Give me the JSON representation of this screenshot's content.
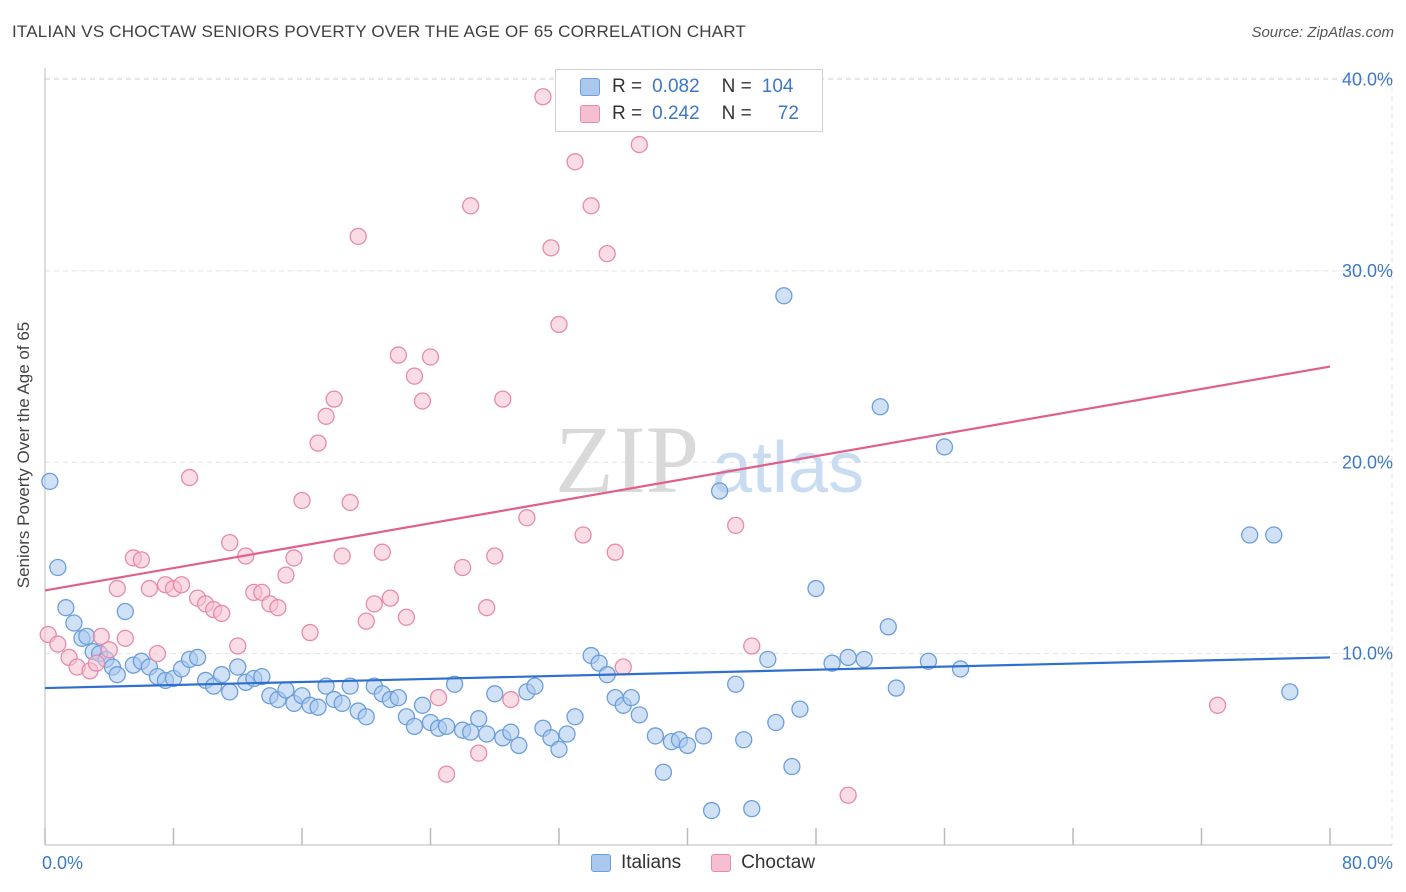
{
  "title": "ITALIAN VS CHOCTAW SENIORS POVERTY OVER THE AGE OF 65 CORRELATION CHART",
  "source": "Source: ZipAtlas.com",
  "watermark": {
    "zip": "ZIP",
    "atlas": "atlas"
  },
  "legend": {
    "italians": {
      "r_label": "R =",
      "r_value": "0.082",
      "n_label": "N =",
      "n_value": "104"
    },
    "choctaw": {
      "r_label": "R =",
      "r_value": "0.242",
      "n_label": "N =",
      "n_value": "72"
    }
  },
  "chart_data": {
    "type": "scatter",
    "title": "ITALIAN VS CHOCTAW SENIORS POVERTY OVER THE AGE OF 65 CORRELATION CHART",
    "xlabel": "",
    "ylabel": "Seniors Poverty Over the Age of 65",
    "xlim": [
      0,
      80
    ],
    "ylim": [
      0,
      41
    ],
    "x_tick_labels": [
      "0.0%",
      "80.0%"
    ],
    "y_ticks": [
      10,
      20,
      30,
      40
    ],
    "y_tick_labels": [
      "10.0%",
      "20.0%",
      "30.0%",
      "40.0%"
    ],
    "grid": true,
    "legend_position": "top-center",
    "colors": {
      "italians_fill": "#aac8ee",
      "italians_stroke": "#6b9fdc",
      "italians_line": "#2f6fcf",
      "choctaw_fill": "#f5bfd0",
      "choctaw_stroke": "#e88aab",
      "choctaw_line": "#e0608a",
      "tick_label": "#3d78c8"
    },
    "series": [
      {
        "name": "Italians",
        "trend": {
          "x": [
            0,
            80
          ],
          "y": [
            8.2,
            9.8
          ]
        },
        "points": [
          [
            0.3,
            19.0
          ],
          [
            0.8,
            14.5
          ],
          [
            1.3,
            12.4
          ],
          [
            1.8,
            11.6
          ],
          [
            2.3,
            10.8
          ],
          [
            2.6,
            10.9
          ],
          [
            3.0,
            10.1
          ],
          [
            3.4,
            10.0
          ],
          [
            3.8,
            9.7
          ],
          [
            4.2,
            9.3
          ],
          [
            4.5,
            8.9
          ],
          [
            5.0,
            12.2
          ],
          [
            5.5,
            9.4
          ],
          [
            6.0,
            9.6
          ],
          [
            6.5,
            9.3
          ],
          [
            7.0,
            8.8
          ],
          [
            7.5,
            8.6
          ],
          [
            8.0,
            8.7
          ],
          [
            8.5,
            9.2
          ],
          [
            9.0,
            9.7
          ],
          [
            9.5,
            9.8
          ],
          [
            10.0,
            8.6
          ],
          [
            10.5,
            8.3
          ],
          [
            11.0,
            8.9
          ],
          [
            11.5,
            8.0
          ],
          [
            12.0,
            9.3
          ],
          [
            12.5,
            8.5
          ],
          [
            13.0,
            8.7
          ],
          [
            13.5,
            8.8
          ],
          [
            14.0,
            7.8
          ],
          [
            14.5,
            7.6
          ],
          [
            15.0,
            8.1
          ],
          [
            15.5,
            7.4
          ],
          [
            16.0,
            7.8
          ],
          [
            16.5,
            7.3
          ],
          [
            17.0,
            7.2
          ],
          [
            17.5,
            8.3
          ],
          [
            18.0,
            7.6
          ],
          [
            18.5,
            7.4
          ],
          [
            19.0,
            8.3
          ],
          [
            19.5,
            7.0
          ],
          [
            20.0,
            6.7
          ],
          [
            20.5,
            8.3
          ],
          [
            21.0,
            7.9
          ],
          [
            21.5,
            7.6
          ],
          [
            22.0,
            7.7
          ],
          [
            22.5,
            6.7
          ],
          [
            23.0,
            6.2
          ],
          [
            23.5,
            7.3
          ],
          [
            24.0,
            6.4
          ],
          [
            24.5,
            6.1
          ],
          [
            25.0,
            6.2
          ],
          [
            25.5,
            8.4
          ],
          [
            26.0,
            6.0
          ],
          [
            26.5,
            5.9
          ],
          [
            27.0,
            6.6
          ],
          [
            27.5,
            5.8
          ],
          [
            28.0,
            7.9
          ],
          [
            28.5,
            5.6
          ],
          [
            29.0,
            5.9
          ],
          [
            29.5,
            5.2
          ],
          [
            30.0,
            8.0
          ],
          [
            30.5,
            8.3
          ],
          [
            31.0,
            6.1
          ],
          [
            31.5,
            5.6
          ],
          [
            32.0,
            5.0
          ],
          [
            32.5,
            5.8
          ],
          [
            33.0,
            6.7
          ],
          [
            34.0,
            9.9
          ],
          [
            34.5,
            9.5
          ],
          [
            35.0,
            8.9
          ],
          [
            35.5,
            7.7
          ],
          [
            36.0,
            7.3
          ],
          [
            36.5,
            7.7
          ],
          [
            37.0,
            6.8
          ],
          [
            38.0,
            5.7
          ],
          [
            38.5,
            3.8
          ],
          [
            39.0,
            5.4
          ],
          [
            39.5,
            5.5
          ],
          [
            40.0,
            5.2
          ],
          [
            41.0,
            5.7
          ],
          [
            41.5,
            1.8
          ],
          [
            42.0,
            18.5
          ],
          [
            43.0,
            8.4
          ],
          [
            43.5,
            5.5
          ],
          [
            44.0,
            1.9
          ],
          [
            45.0,
            9.7
          ],
          [
            45.5,
            6.4
          ],
          [
            46.0,
            28.7
          ],
          [
            46.5,
            4.1
          ],
          [
            47.0,
            7.1
          ],
          [
            48.0,
            13.4
          ],
          [
            49.0,
            9.5
          ],
          [
            50.0,
            9.8
          ],
          [
            51.0,
            9.7
          ],
          [
            52.0,
            22.9
          ],
          [
            52.5,
            11.4
          ],
          [
            53.0,
            8.2
          ],
          [
            55.0,
            9.6
          ],
          [
            56.0,
            20.8
          ],
          [
            57.0,
            9.2
          ],
          [
            75.0,
            16.2
          ],
          [
            76.5,
            16.2
          ],
          [
            77.5,
            8.0
          ]
        ]
      },
      {
        "name": "Choctaw",
        "trend": {
          "x": [
            0,
            80
          ],
          "y": [
            13.3,
            25.0
          ]
        },
        "points": [
          [
            0.2,
            11.0
          ],
          [
            0.8,
            10.5
          ],
          [
            1.5,
            9.8
          ],
          [
            2.0,
            9.3
          ],
          [
            2.8,
            9.1
          ],
          [
            3.2,
            9.5
          ],
          [
            3.5,
            10.9
          ],
          [
            4.0,
            10.2
          ],
          [
            4.5,
            13.4
          ],
          [
            5.0,
            10.8
          ],
          [
            5.5,
            15.0
          ],
          [
            6.0,
            14.9
          ],
          [
            6.5,
            13.4
          ],
          [
            7.0,
            10.0
          ],
          [
            7.5,
            13.6
          ],
          [
            8.0,
            13.4
          ],
          [
            8.5,
            13.6
          ],
          [
            9.0,
            19.2
          ],
          [
            9.5,
            12.9
          ],
          [
            10.0,
            12.6
          ],
          [
            10.5,
            12.3
          ],
          [
            11.0,
            12.1
          ],
          [
            11.5,
            15.8
          ],
          [
            12.0,
            10.4
          ],
          [
            12.5,
            15.1
          ],
          [
            13.0,
            13.2
          ],
          [
            13.5,
            13.2
          ],
          [
            14.0,
            12.6
          ],
          [
            14.5,
            12.4
          ],
          [
            15.0,
            14.1
          ],
          [
            15.5,
            15.0
          ],
          [
            16.0,
            18.0
          ],
          [
            16.5,
            11.1
          ],
          [
            17.0,
            21.0
          ],
          [
            17.5,
            22.4
          ],
          [
            18.0,
            23.3
          ],
          [
            18.5,
            15.1
          ],
          [
            19.0,
            17.9
          ],
          [
            19.5,
            31.8
          ],
          [
            20.0,
            11.7
          ],
          [
            20.5,
            12.6
          ],
          [
            21.0,
            15.3
          ],
          [
            21.5,
            12.9
          ],
          [
            22.0,
            25.6
          ],
          [
            22.5,
            11.9
          ],
          [
            23.0,
            24.5
          ],
          [
            23.5,
            23.2
          ],
          [
            24.0,
            25.5
          ],
          [
            24.5,
            7.7
          ],
          [
            25.0,
            3.7
          ],
          [
            26.0,
            14.5
          ],
          [
            26.5,
            33.4
          ],
          [
            27.0,
            4.8
          ],
          [
            27.5,
            12.4
          ],
          [
            28.0,
            15.1
          ],
          [
            28.5,
            23.3
          ],
          [
            29.0,
            7.6
          ],
          [
            30.0,
            17.1
          ],
          [
            31.0,
            39.1
          ],
          [
            31.5,
            31.2
          ],
          [
            32.0,
            27.2
          ],
          [
            33.0,
            35.7
          ],
          [
            33.5,
            16.2
          ],
          [
            34.0,
            33.4
          ],
          [
            35.0,
            30.9
          ],
          [
            35.5,
            15.3
          ],
          [
            36.0,
            9.3
          ],
          [
            37.0,
            36.6
          ],
          [
            43.0,
            16.7
          ],
          [
            44.0,
            10.4
          ],
          [
            50.0,
            2.6
          ],
          [
            73.0,
            7.3
          ]
        ]
      }
    ]
  },
  "bottom_legend": [
    "Italians",
    "Choctaw"
  ]
}
